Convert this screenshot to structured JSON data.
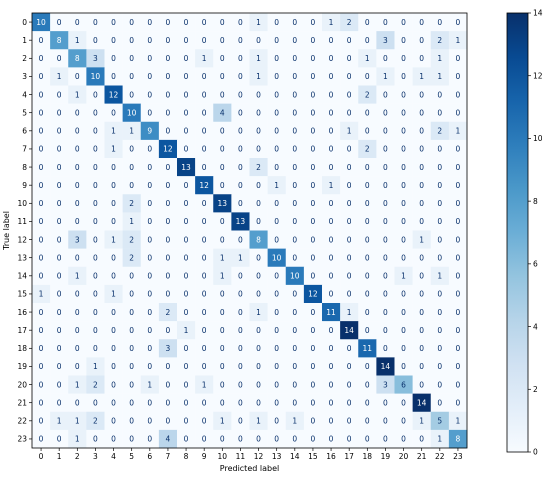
{
  "chart_data": {
    "type": "heatmap",
    "title": "",
    "xlabel": "Predicted label",
    "ylabel": "True label",
    "x_ticks": [
      "0",
      "1",
      "2",
      "3",
      "4",
      "5",
      "6",
      "7",
      "8",
      "9",
      "10",
      "11",
      "12",
      "13",
      "14",
      "15",
      "16",
      "17",
      "18",
      "19",
      "20",
      "21",
      "22",
      "23"
    ],
    "y_ticks": [
      "0",
      "1",
      "2",
      "3",
      "4",
      "5",
      "6",
      "7",
      "8",
      "9",
      "10",
      "11",
      "12",
      "13",
      "14",
      "15",
      "16",
      "17",
      "18",
      "19",
      "20",
      "21",
      "22",
      "23"
    ],
    "matrix": [
      [
        10,
        0,
        0,
        0,
        0,
        0,
        0,
        0,
        0,
        0,
        0,
        0,
        1,
        0,
        0,
        0,
        1,
        2,
        0,
        0,
        0,
        0,
        0,
        0
      ],
      [
        0,
        8,
        1,
        0,
        0,
        0,
        0,
        0,
        0,
        0,
        0,
        0,
        0,
        0,
        0,
        0,
        0,
        0,
        0,
        3,
        0,
        0,
        2,
        1
      ],
      [
        0,
        0,
        8,
        3,
        0,
        0,
        0,
        0,
        0,
        1,
        0,
        0,
        1,
        0,
        0,
        0,
        0,
        0,
        1,
        0,
        0,
        0,
        1,
        0
      ],
      [
        0,
        1,
        0,
        10,
        0,
        0,
        0,
        0,
        0,
        0,
        0,
        0,
        1,
        0,
        0,
        0,
        0,
        0,
        0,
        1,
        0,
        1,
        1,
        0
      ],
      [
        0,
        0,
        1,
        0,
        12,
        0,
        0,
        0,
        0,
        0,
        0,
        0,
        0,
        0,
        0,
        0,
        0,
        0,
        2,
        0,
        0,
        0,
        0,
        0
      ],
      [
        0,
        0,
        0,
        0,
        0,
        10,
        0,
        0,
        0,
        0,
        4,
        0,
        0,
        0,
        0,
        0,
        0,
        0,
        0,
        0,
        0,
        0,
        0,
        0
      ],
      [
        0,
        0,
        0,
        0,
        1,
        1,
        9,
        0,
        0,
        0,
        0,
        0,
        0,
        0,
        0,
        0,
        0,
        1,
        0,
        0,
        0,
        0,
        2,
        1
      ],
      [
        0,
        0,
        0,
        0,
        1,
        0,
        0,
        12,
        0,
        0,
        0,
        0,
        0,
        0,
        0,
        0,
        0,
        0,
        2,
        0,
        0,
        0,
        0,
        0
      ],
      [
        0,
        0,
        0,
        0,
        0,
        0,
        0,
        0,
        13,
        0,
        0,
        0,
        2,
        0,
        0,
        0,
        0,
        0,
        0,
        0,
        0,
        0,
        0,
        0
      ],
      [
        0,
        0,
        0,
        0,
        0,
        0,
        0,
        0,
        0,
        12,
        0,
        0,
        0,
        1,
        0,
        0,
        1,
        0,
        0,
        0,
        0,
        0,
        0,
        0
      ],
      [
        0,
        0,
        0,
        0,
        0,
        2,
        0,
        0,
        0,
        0,
        13,
        0,
        0,
        0,
        0,
        0,
        0,
        0,
        0,
        0,
        0,
        0,
        0,
        0
      ],
      [
        0,
        0,
        0,
        0,
        0,
        1,
        0,
        0,
        0,
        0,
        0,
        13,
        0,
        0,
        0,
        0,
        0,
        0,
        0,
        0,
        0,
        0,
        0,
        0
      ],
      [
        0,
        0,
        3,
        0,
        1,
        2,
        0,
        0,
        0,
        0,
        0,
        0,
        8,
        0,
        0,
        0,
        0,
        0,
        0,
        0,
        0,
        1,
        0,
        0
      ],
      [
        0,
        0,
        0,
        0,
        0,
        2,
        0,
        0,
        0,
        0,
        1,
        1,
        0,
        10,
        0,
        0,
        0,
        0,
        0,
        0,
        0,
        0,
        0,
        0
      ],
      [
        0,
        0,
        1,
        0,
        0,
        0,
        0,
        0,
        0,
        0,
        1,
        0,
        0,
        0,
        10,
        0,
        0,
        0,
        0,
        0,
        1,
        0,
        1,
        0
      ],
      [
        1,
        0,
        0,
        0,
        1,
        0,
        0,
        0,
        0,
        0,
        0,
        0,
        0,
        0,
        0,
        12,
        0,
        0,
        0,
        0,
        0,
        0,
        0,
        0
      ],
      [
        0,
        0,
        0,
        0,
        0,
        0,
        0,
        2,
        0,
        0,
        0,
        0,
        1,
        0,
        0,
        0,
        11,
        1,
        0,
        0,
        0,
        0,
        0,
        0
      ],
      [
        0,
        0,
        0,
        0,
        0,
        0,
        0,
        0,
        1,
        0,
        0,
        0,
        0,
        0,
        0,
        0,
        0,
        14,
        0,
        0,
        0,
        0,
        0,
        0
      ],
      [
        0,
        0,
        0,
        0,
        0,
        0,
        0,
        3,
        0,
        0,
        0,
        0,
        0,
        0,
        0,
        0,
        0,
        0,
        11,
        0,
        0,
        0,
        0,
        0
      ],
      [
        0,
        0,
        0,
        1,
        0,
        0,
        0,
        0,
        0,
        0,
        0,
        0,
        0,
        0,
        0,
        0,
        0,
        0,
        0,
        14,
        0,
        0,
        0,
        0
      ],
      [
        0,
        0,
        1,
        2,
        0,
        0,
        1,
        0,
        0,
        1,
        0,
        0,
        0,
        0,
        0,
        0,
        0,
        0,
        0,
        3,
        6,
        0,
        0,
        0
      ],
      [
        0,
        0,
        0,
        0,
        0,
        0,
        0,
        0,
        0,
        0,
        0,
        0,
        0,
        0,
        0,
        0,
        0,
        0,
        0,
        0,
        0,
        14,
        0,
        0
      ],
      [
        0,
        1,
        1,
        2,
        0,
        0,
        0,
        0,
        0,
        0,
        1,
        0,
        1,
        0,
        1,
        0,
        0,
        0,
        0,
        0,
        0,
        1,
        5,
        1
      ],
      [
        0,
        0,
        1,
        0,
        0,
        0,
        0,
        4,
        0,
        0,
        0,
        0,
        0,
        0,
        0,
        0,
        0,
        0,
        0,
        0,
        0,
        0,
        1,
        8
      ]
    ],
    "colormap": "Blues",
    "vmin": 0,
    "vmax": 14,
    "colorbar_ticks": [
      "0",
      "2",
      "4",
      "6",
      "8",
      "10",
      "12",
      "14"
    ],
    "colorbar_tick_values": [
      0,
      2,
      4,
      6,
      8,
      10,
      12,
      14
    ],
    "colors": {
      "low": "#f7fbff",
      "high": "#08306b",
      "text_on_dark": "#ffffff",
      "text_on_light": "#08306b"
    }
  }
}
